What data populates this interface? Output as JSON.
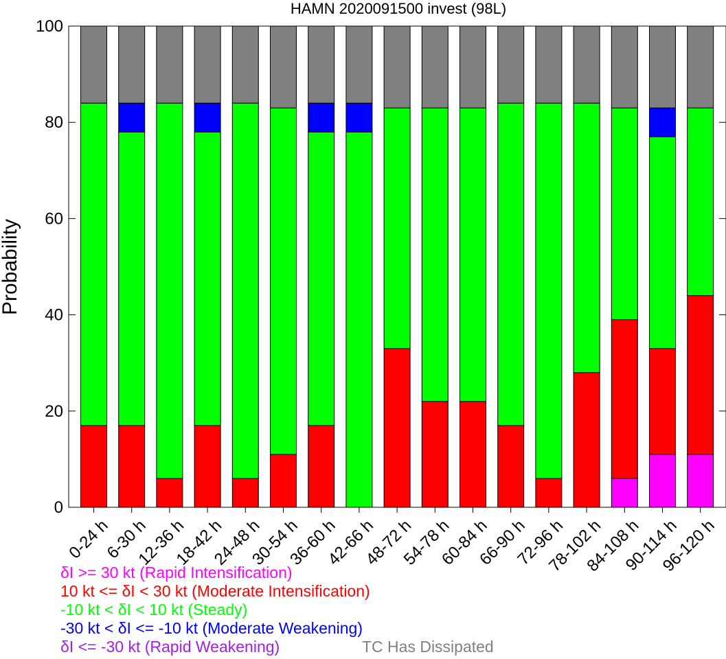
{
  "chart_data": {
    "type": "bar",
    "stacked": true,
    "title": "HAMN 2020091500 invest (98L)",
    "ylabel": "Probability",
    "xlabel": "",
    "ylim": [
      0,
      100
    ],
    "yticks": [
      0,
      20,
      40,
      60,
      80,
      100
    ],
    "grid": false,
    "categories": [
      "0-24 h",
      "6-30 h",
      "12-36 h",
      "18-42 h",
      "24-48 h",
      "30-54 h",
      "36-60 h",
      "42-66 h",
      "48-72 h",
      "54-78 h",
      "60-84 h",
      "66-90 h",
      "72-96 h",
      "78-102 h",
      "84-108 h",
      "90-114 h",
      "96-120 h"
    ],
    "series": [
      {
        "key": "ri",
        "color": "#ff00ff",
        "values": [
          0,
          0,
          0,
          0,
          0,
          0,
          0,
          0,
          0,
          0,
          0,
          0,
          0,
          0,
          6,
          11,
          11
        ]
      },
      {
        "key": "mi",
        "color": "#ff0000",
        "values": [
          17,
          17,
          6,
          17,
          6,
          11,
          17,
          0,
          33,
          22,
          22,
          17,
          6,
          28,
          33,
          22,
          33
        ]
      },
      {
        "key": "st",
        "color": "#00ff00",
        "values": [
          67,
          61,
          78,
          61,
          78,
          72,
          61,
          78,
          50,
          61,
          61,
          67,
          78,
          56,
          44,
          44,
          39
        ]
      },
      {
        "key": "mw",
        "color": "#0000ff",
        "values": [
          0,
          6,
          0,
          6,
          0,
          0,
          6,
          6,
          0,
          0,
          0,
          0,
          0,
          0,
          0,
          6,
          0
        ]
      },
      {
        "key": "rw",
        "color": "#a020f0",
        "values": [
          0,
          0,
          0,
          0,
          0,
          0,
          0,
          0,
          0,
          0,
          0,
          0,
          0,
          0,
          0,
          0,
          0
        ]
      },
      {
        "key": "dis",
        "color": "#808080",
        "values": [
          16,
          16,
          16,
          16,
          16,
          17,
          16,
          16,
          17,
          17,
          17,
          16,
          16,
          16,
          17,
          17,
          17
        ]
      }
    ],
    "legend": [
      {
        "text": "δI >= 30 kt (Rapid Intensification)",
        "color": "#ff00ff"
      },
      {
        "text": "10 kt <= δI < 30 kt (Moderate Intensification)",
        "color": "#ff0000"
      },
      {
        "text": "-10 kt < δI < 10 kt (Steady)",
        "color": "#00ff00"
      },
      {
        "text": "-30 kt < δI <= -10 kt (Moderate Weakening)",
        "color": "#0000ff"
      },
      {
        "text": "δI <= -30 kt (Rapid Weakening)",
        "color": "#a020f0"
      },
      {
        "text": "TC Has Dissipated",
        "color": "#808080"
      }
    ]
  }
}
